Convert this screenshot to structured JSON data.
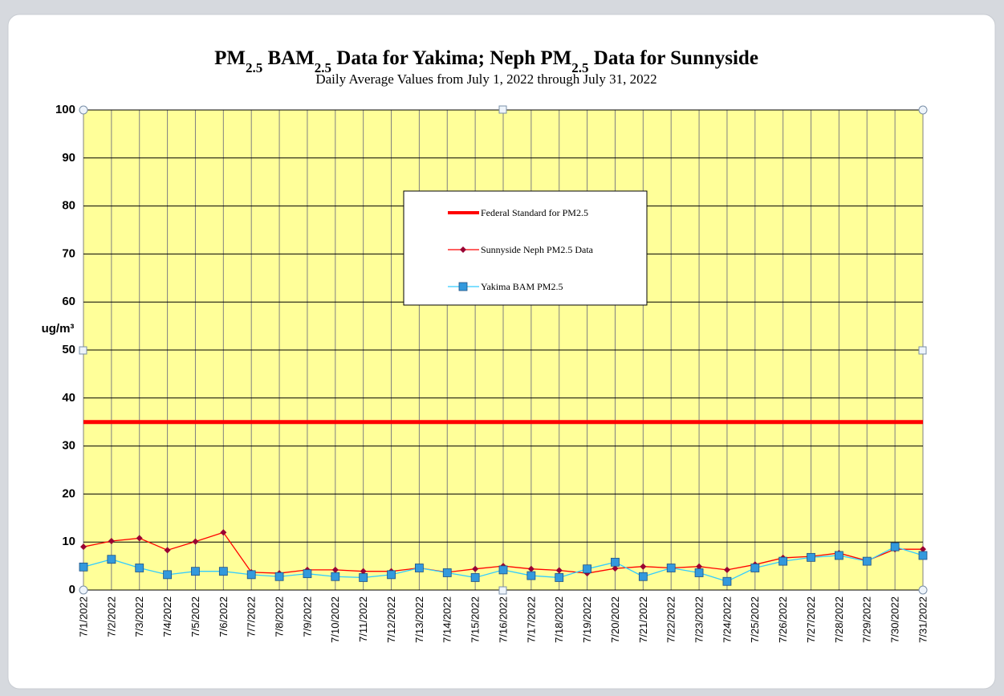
{
  "chart_data": {
    "type": "line",
    "title": "PM2.5 BAM2.5 Data for Yakima; Neph PM2.5 Data for Sunnyside",
    "subtitle": "Daily Average Values from July 1, 2022 through July 31, 2022",
    "y_label": "ug/m³",
    "categories": [
      "7/1/2022",
      "7/2/2022",
      "7/3/2022",
      "7/4/2022",
      "7/5/2022",
      "7/6/2022",
      "7/7/2022",
      "7/8/2022",
      "7/9/2022",
      "7/10/2022",
      "7/11/2022",
      "7/12/2022",
      "7/13/2022",
      "7/14/2022",
      "7/15/2022",
      "7/16/2022",
      "7/17/2022",
      "7/18/2022",
      "7/19/2022",
      "7/20/2022",
      "7/21/2022",
      "7/22/2022",
      "7/23/2022",
      "7/24/2022",
      "7/25/2022",
      "7/26/2022",
      "7/27/2022",
      "7/28/2022",
      "7/29/2022",
      "7/30/2022",
      "7/31/2022"
    ],
    "series": [
      {
        "name": "Federal Standard for PM2.5",
        "color": "#ff0000",
        "values": [
          35,
          35,
          35,
          35,
          35,
          35,
          35,
          35,
          35,
          35,
          35,
          35,
          35,
          35,
          35,
          35,
          35,
          35,
          35,
          35,
          35,
          35,
          35,
          35,
          35,
          35,
          35,
          35,
          35,
          35,
          35
        ]
      },
      {
        "name": "Sunnyside Neph PM2.5 Data",
        "color": "#ff0000",
        "marker_color": "#990033",
        "marker": "diamond",
        "values": [
          9,
          10.2,
          10.8,
          8.3,
          10.1,
          12,
          3.7,
          3.5,
          4.2,
          4.2,
          3.9,
          3.9,
          4.6,
          3.7,
          4.4,
          5,
          4.4,
          4.1,
          3.5,
          4.5,
          4.9,
          4.6,
          4.9,
          4.2,
          5.3,
          6.7,
          7,
          7.7,
          6.1,
          8.5,
          8.5
        ]
      },
      {
        "name": "Yakima BAM PM2.5",
        "color": "#33ccff",
        "marker_color": "#3399dd",
        "marker": "square",
        "values": [
          4.8,
          6.4,
          4.6,
          3.2,
          3.9,
          3.9,
          3.2,
          2.8,
          3.4,
          2.8,
          2.6,
          3.2,
          4.6,
          3.6,
          2.6,
          4.2,
          3,
          2.6,
          4.4,
          5.8,
          2.8,
          4.6,
          3.6,
          1.8,
          4.6,
          6,
          6.8,
          7.2,
          6,
          9,
          7.2
        ]
      }
    ],
    "ylim": [
      0,
      100
    ],
    "yticks": [
      0,
      10,
      20,
      30,
      40,
      50,
      60,
      70,
      80,
      90,
      100
    ],
    "grid": true,
    "plot_color": "#ffff99"
  }
}
